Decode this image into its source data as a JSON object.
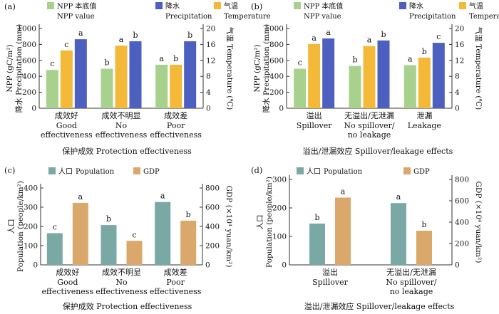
{
  "colors": {
    "npp": "#a9d18e",
    "precipitation": "#4d5fbf",
    "temperature": "#f5b93a",
    "population": "#7aa9a5",
    "gdp": "#dba86b",
    "axis": "#333333"
  },
  "chart_data": [
    {
      "panel": "(a)",
      "type": "bar",
      "legend": [
        {
          "key": "npp",
          "zh": "NPP 本底值",
          "en": "NPP value"
        },
        {
          "key": "precipitation",
          "zh": "降水",
          "en": "Precipitation"
        },
        {
          "key": "temperature",
          "zh": "气温",
          "en": "Temperature"
        }
      ],
      "categories": [
        {
          "zh": "成效好",
          "en": [
            "Good",
            "effectiveness"
          ]
        },
        {
          "zh": "成效不明显",
          "en": [
            "No",
            "effectiveness"
          ]
        },
        {
          "zh": "成效差",
          "en": [
            "Poor",
            "effectiveness"
          ]
        }
      ],
      "series": [
        {
          "key": "npp",
          "axis": "left",
          "values": [
            480,
            495,
            545
          ],
          "sig": [
            "c",
            "b",
            "a"
          ]
        },
        {
          "key": "temperature",
          "axis": "right",
          "values": [
            14.5,
            15.7,
            10.9
          ],
          "sig": [
            "c",
            "a",
            "b"
          ]
        },
        {
          "key": "precipitation",
          "axis": "left",
          "values": [
            865,
            840,
            840
          ],
          "sig": [
            "a",
            "b",
            "b"
          ]
        }
      ],
      "ylabel_left": [
        "NPP (gC/m²)",
        "降水 Precipitation (mm)"
      ],
      "ylabel_right": "气温 Temperature (℃)",
      "ylim_left": [
        0,
        1000
      ],
      "yticks_left": [
        "0",
        "200",
        "400",
        "600",
        "800",
        "1000"
      ],
      "ylim_right": [
        0,
        20
      ],
      "yticks_right": [
        "0",
        "4",
        "8",
        "12",
        "16",
        "20"
      ],
      "xtitle": "保护成效 Protection effectiveness"
    },
    {
      "panel": "(b)",
      "type": "bar",
      "legend": [
        {
          "key": "npp",
          "zh": "NPP 本底值",
          "en": "NPP value"
        },
        {
          "key": "precipitation",
          "zh": "降水",
          "en": "Precipitation"
        },
        {
          "key": "temperature",
          "zh": "气温",
          "en": "Temperature"
        }
      ],
      "categories": [
        {
          "zh": "溢出",
          "en": [
            "Spillover"
          ]
        },
        {
          "zh": "无溢出/无泄漏",
          "en": [
            "No spillover/",
            "no leakage"
          ]
        },
        {
          "zh": "泄漏",
          "en": [
            "Leakage"
          ]
        }
      ],
      "series": [
        {
          "key": "npp",
          "axis": "left",
          "values": [
            495,
            530,
            540
          ],
          "sig": [
            "c",
            "b",
            "a"
          ]
        },
        {
          "key": "temperature",
          "axis": "right",
          "values": [
            16.1,
            15.6,
            12.7
          ],
          "sig": [
            "a",
            "a",
            "b"
          ]
        },
        {
          "key": "precipitation",
          "axis": "left",
          "values": [
            875,
            850,
            820
          ],
          "sig": [
            "a",
            "b",
            "c"
          ]
        }
      ],
      "ylabel_left": [
        "NPP (gC/m²)",
        "降水 Precipitation (mm)"
      ],
      "ylabel_right": "气温 Temperature (℃)",
      "ylim_left": [
        0,
        1000
      ],
      "yticks_left": [
        "0",
        "200",
        "400",
        "600",
        "800",
        "1000"
      ],
      "ylim_right": [
        0,
        20
      ],
      "yticks_right": [
        "0",
        "4",
        "8",
        "12",
        "16",
        "20"
      ],
      "xtitle": "溢出/泄漏效应 Spillover/leakage effects"
    },
    {
      "panel": "(c)",
      "type": "bar",
      "legend": [
        {
          "key": "population",
          "zh": "人口",
          "en": "Population"
        },
        {
          "key": "gdp",
          "zh": "",
          "en": "GDP"
        }
      ],
      "categories": [
        {
          "zh": "成效好",
          "en": [
            "Good",
            "effectiveness"
          ]
        },
        {
          "zh": "成效不明显",
          "en": [
            "No",
            "effectiveness"
          ]
        },
        {
          "zh": "成效差",
          "en": [
            "Poor",
            "effectiveness"
          ]
        }
      ],
      "series": [
        {
          "key": "population",
          "axis": "left",
          "values": [
            165,
            207,
            327
          ],
          "sig": [
            "c",
            "b",
            "a"
          ]
        },
        {
          "key": "gdp",
          "axis": "right",
          "values": [
            645,
            250,
            460
          ],
          "sig": [
            "a",
            "c",
            "b"
          ]
        }
      ],
      "ylabel_left": [
        "人口",
        "Population (people/km²)"
      ],
      "ylabel_right": "GDP (×10⁴ yuan/km²)",
      "ylim_left": [
        0,
        400
      ],
      "yticks_left": [
        "0",
        "100",
        "200",
        "300",
        "400"
      ],
      "ylim_right": [
        0,
        800
      ],
      "yticks_right": [
        "0",
        "200",
        "400",
        "600",
        "800"
      ],
      "xtitle": "保护成效 Protection effectiveness"
    },
    {
      "panel": "(d)",
      "type": "bar",
      "legend": [
        {
          "key": "population",
          "zh": "人口",
          "en": "Population"
        },
        {
          "key": "gdp",
          "zh": "",
          "en": "GDP"
        }
      ],
      "categories": [
        {
          "zh": "溢出",
          "en": [
            "Spillover"
          ]
        },
        {
          "zh": "无溢出/无泄漏",
          "en": [
            "No spillover/",
            "no leakage"
          ]
        }
      ],
      "series": [
        {
          "key": "population",
          "axis": "left",
          "values": [
            145,
            217
          ],
          "sig": [
            "b",
            "a"
          ]
        },
        {
          "key": "gdp",
          "axis": "right",
          "values": [
            630,
            320
          ],
          "sig": [
            "a",
            "b"
          ]
        }
      ],
      "ylabel_left": [
        "人口",
        "Population (people/km²)"
      ],
      "ylabel_right": "GDP (×10⁴ yuan/km²)",
      "ylim_left": [
        0,
        300
      ],
      "yticks_left": [
        "0",
        "100",
        "200",
        "300"
      ],
      "ylim_right": [
        0,
        800
      ],
      "yticks_right": [
        "0",
        "200",
        "400",
        "600",
        "800"
      ],
      "xtitle": "溢出/泄漏效应 Spillover/leakage effects"
    }
  ]
}
